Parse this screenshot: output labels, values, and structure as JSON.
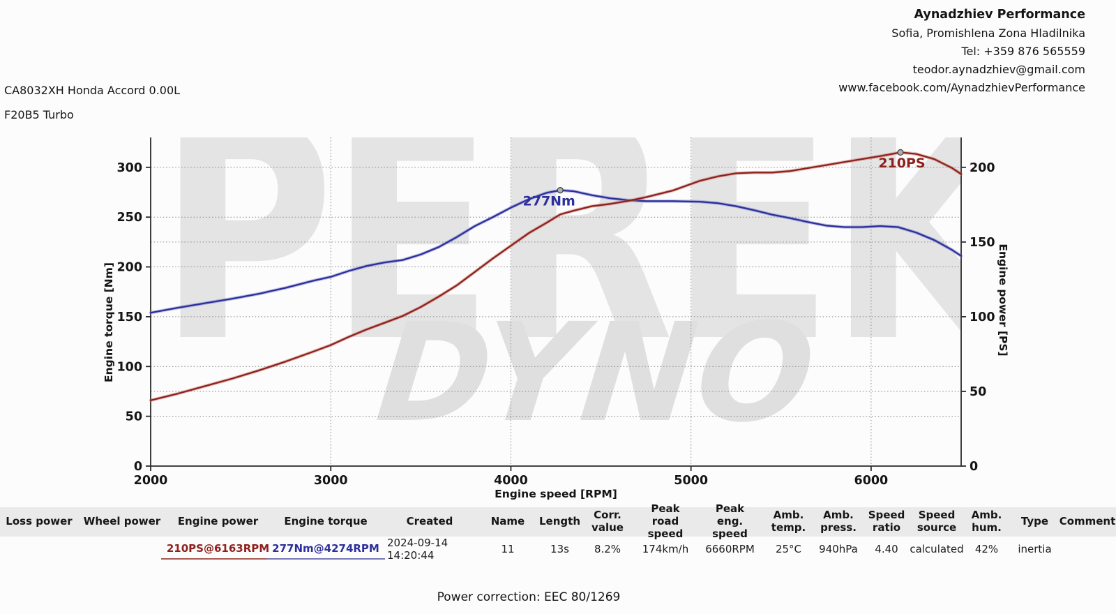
{
  "header": {
    "company": "Aynadzhiev Performance",
    "address": "Sofia, Promishlena Zona Hladilnika",
    "phone": "Tel: +359 876 565559",
    "email": "teodor.aynadzhiev@gmail.com",
    "website": "www.facebook.com/AynadzhievPerformance"
  },
  "vehicle": {
    "line1": "CA8032XH Honda Accord 0.00L",
    "line2": "F20B5 Turbo"
  },
  "watermark": {
    "line1": "PEREK",
    "line2": "DYNO"
  },
  "chart_data": {
    "type": "line",
    "xlabel": "Engine speed [RPM]",
    "ylabel_left": "Engine torque [Nm]",
    "ylabel_right": "Engine power [PS]",
    "x_range": [
      2000,
      6500
    ],
    "y_left_range": [
      0,
      330
    ],
    "y_right_range": [
      0,
      220
    ],
    "x_ticks": [
      2000,
      3000,
      4000,
      5000,
      6000
    ],
    "y_left_ticks": [
      0,
      50,
      100,
      150,
      200,
      250,
      300
    ],
    "y_right_ticks": [
      0,
      50,
      100,
      150,
      200
    ],
    "grid": true,
    "legend": "none",
    "series": [
      {
        "name": "Engine torque",
        "axis": "left",
        "color": "#2c2f9c",
        "halo": "rgba(110,118,200,0.45)",
        "annotation": "277Nm",
        "peak": {
          "rpm": 4274,
          "value": 277
        },
        "points": [
          [
            2000,
            154
          ],
          [
            2150,
            159
          ],
          [
            2300,
            163.5
          ],
          [
            2450,
            168
          ],
          [
            2600,
            173
          ],
          [
            2750,
            179
          ],
          [
            2900,
            186
          ],
          [
            3000,
            190
          ],
          [
            3100,
            196
          ],
          [
            3200,
            201
          ],
          [
            3300,
            204.5
          ],
          [
            3400,
            207
          ],
          [
            3500,
            212.5
          ],
          [
            3600,
            220
          ],
          [
            3700,
            230
          ],
          [
            3800,
            241
          ],
          [
            3900,
            250
          ],
          [
            4000,
            259.5
          ],
          [
            4100,
            268
          ],
          [
            4200,
            274.5
          ],
          [
            4274,
            277
          ],
          [
            4350,
            276
          ],
          [
            4450,
            272
          ],
          [
            4550,
            269
          ],
          [
            4650,
            267
          ],
          [
            4750,
            266
          ],
          [
            4900,
            266
          ],
          [
            5050,
            265.5
          ],
          [
            5150,
            264
          ],
          [
            5250,
            261
          ],
          [
            5350,
            257
          ],
          [
            5450,
            252.5
          ],
          [
            5550,
            249
          ],
          [
            5650,
            245
          ],
          [
            5750,
            241.5
          ],
          [
            5850,
            240
          ],
          [
            5950,
            240
          ],
          [
            6050,
            241
          ],
          [
            6150,
            240
          ],
          [
            6250,
            234.5
          ],
          [
            6350,
            227
          ],
          [
            6450,
            217
          ],
          [
            6500,
            211
          ]
        ]
      },
      {
        "name": "Engine power",
        "axis": "right",
        "color": "#8e211d",
        "halo": "rgba(198,115,105,0.45)",
        "annotation": "210PS",
        "peak": {
          "rpm": 6163,
          "value": 210
        },
        "points": [
          [
            2000,
            44
          ],
          [
            2150,
            48.5
          ],
          [
            2300,
            53.5
          ],
          [
            2450,
            58.5
          ],
          [
            2600,
            64
          ],
          [
            2750,
            70
          ],
          [
            2900,
            76.5
          ],
          [
            3000,
            81
          ],
          [
            3100,
            86.5
          ],
          [
            3200,
            91.5
          ],
          [
            3300,
            96
          ],
          [
            3400,
            100.5
          ],
          [
            3500,
            106.5
          ],
          [
            3600,
            113.5
          ],
          [
            3700,
            121
          ],
          [
            3800,
            130
          ],
          [
            3900,
            139
          ],
          [
            4000,
            147.5
          ],
          [
            4100,
            156
          ],
          [
            4200,
            163
          ],
          [
            4274,
            168.5
          ],
          [
            4350,
            171
          ],
          [
            4450,
            174
          ],
          [
            4550,
            175.5
          ],
          [
            4650,
            177.5
          ],
          [
            4750,
            180
          ],
          [
            4900,
            184.5
          ],
          [
            5050,
            191
          ],
          [
            5150,
            194
          ],
          [
            5250,
            196
          ],
          [
            5350,
            196.5
          ],
          [
            5450,
            196.5
          ],
          [
            5550,
            197.5
          ],
          [
            5650,
            199.5
          ],
          [
            5750,
            201.5
          ],
          [
            5850,
            203.5
          ],
          [
            5950,
            205.5
          ],
          [
            6050,
            207.5
          ],
          [
            6163,
            210
          ],
          [
            6250,
            209
          ],
          [
            6350,
            205.5
          ],
          [
            6450,
            199.5
          ],
          [
            6500,
            195.5
          ]
        ]
      }
    ]
  },
  "table": {
    "columns": [
      {
        "label": "Loss power",
        "value": ""
      },
      {
        "label": "Wheel power",
        "value": ""
      },
      {
        "label": "Engine power",
        "value": "210PS@6163RPM",
        "style": "power"
      },
      {
        "label": "Engine torque",
        "value": "277Nm@4274RPM",
        "style": "torque"
      },
      {
        "label": "Created",
        "value": "2024-09-14 14:20:44"
      },
      {
        "label": "Name",
        "value": "11"
      },
      {
        "label": "Length",
        "value": "13s"
      },
      {
        "label": "Corr.\nvalue",
        "value": "8.2%"
      },
      {
        "label": "Peak\nroad speed",
        "value": "174km/h"
      },
      {
        "label": "Peak\neng. speed",
        "value": "6660RPM"
      },
      {
        "label": "Amb.\ntemp.",
        "value": "25°C"
      },
      {
        "label": "Amb.\npress.",
        "value": "940hPa"
      },
      {
        "label": "Speed\nratio",
        "value": "4.40"
      },
      {
        "label": "Speed\nsource",
        "value": "calculated"
      },
      {
        "label": "Amb.\nhum.",
        "value": "42%"
      },
      {
        "label": "Type",
        "value": "inertia"
      },
      {
        "label": "Comment",
        "value": ""
      }
    ]
  },
  "footer": {
    "power_correction": "Power correction: EEC 80/1269"
  }
}
